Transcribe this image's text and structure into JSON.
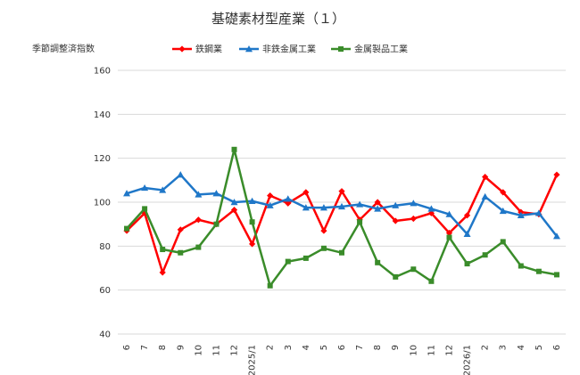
{
  "chart_data": {
    "type": "line",
    "title": "基礎素材型産業（１）",
    "ylabel": "季節調整済指数",
    "xlabel": "",
    "ylim": [
      40,
      160
    ],
    "yticks": [
      40,
      60,
      80,
      100,
      120,
      140,
      160
    ],
    "grid": "horizontal",
    "legend": "top",
    "categories": [
      "6",
      "7",
      "8",
      "9",
      "10",
      "11",
      "12",
      "2025/1",
      "2",
      "3",
      "4",
      "5",
      "6",
      "7",
      "8",
      "9",
      "10",
      "11",
      "12",
      "2026/1",
      "2",
      "3",
      "4",
      "5",
      "6"
    ],
    "series": [
      {
        "name": "鉄鋼業",
        "color": "#ff0000",
        "marker": "diamond",
        "values": [
          87,
          95,
          68,
          87.5,
          92,
          90,
          96.5,
          81,
          103,
          99.5,
          104.5,
          87,
          105,
          92,
          100,
          91.5,
          92.5,
          95,
          86,
          94,
          111.5,
          104.5,
          95.5,
          94.5,
          112.5
        ]
      },
      {
        "name": "非鉄金属工業",
        "color": "#1f77c8",
        "marker": "triangle",
        "values": [
          104,
          106.5,
          105.5,
          112.5,
          103.5,
          104,
          100,
          100.5,
          98.5,
          101.5,
          97.5,
          97.5,
          98,
          99,
          97,
          98.5,
          99.5,
          97,
          94.5,
          85.5,
          102.5,
          96,
          94,
          95,
          84.5
        ]
      },
      {
        "name": "金属製品工業",
        "color": "#3a8c2a",
        "marker": "square",
        "values": [
          88,
          97,
          78.5,
          77,
          79.5,
          90,
          124,
          91,
          62,
          73,
          74.5,
          79,
          77,
          91,
          72.5,
          66,
          69.5,
          64,
          84,
          72,
          76,
          82,
          71,
          68.5,
          67
        ]
      }
    ]
  }
}
